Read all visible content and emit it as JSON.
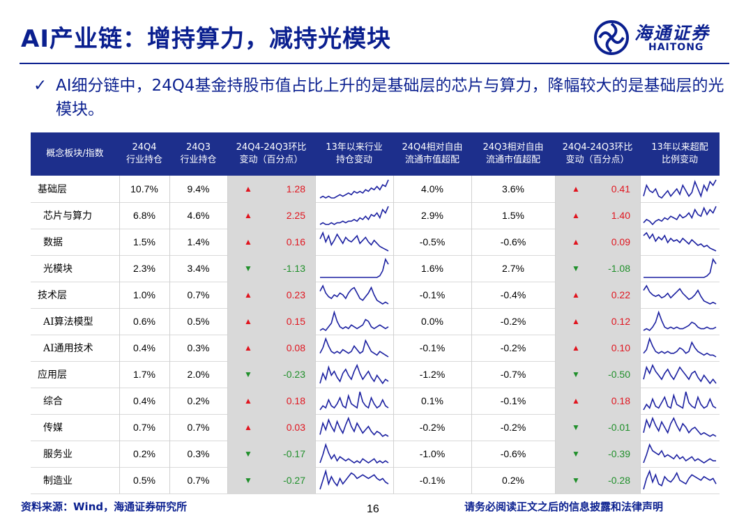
{
  "title": "AI产业链：增持算力，减持光模块",
  "logo": {
    "cn": "海通证券",
    "en": "HAITONG"
  },
  "bullet": {
    "check": "✓",
    "text": "AI细分链中，24Q4基金持股市值占比上升的是基础层的芯片与算力，降幅较大的是基础层的光模块。"
  },
  "table": {
    "headers": [
      [
        "概念板块/指数"
      ],
      [
        "24Q4",
        "行业持仓"
      ],
      [
        "24Q3",
        "行业持仓"
      ],
      [
        "24Q4-24Q3环比",
        "变动（百分点）"
      ],
      [
        "13年以来行业",
        "持仓变动"
      ],
      [
        "24Q4相对自由",
        "流通市值超配"
      ],
      [
        "24Q3相对自由",
        "流通市值超配"
      ],
      [
        "24Q4-24Q3环比",
        "变动（百分点）"
      ],
      [
        "13年以来超配",
        "比例变动"
      ]
    ],
    "rows": [
      {
        "name": "基础层",
        "indent": 0,
        "q4": "10.7%",
        "q3": "9.4%",
        "dir": "up",
        "chg": "1.28",
        "s1": [
          2,
          3,
          2,
          3,
          2,
          2,
          3,
          4,
          3,
          4,
          5,
          4,
          6,
          5,
          6,
          5,
          7,
          6,
          8,
          7,
          9,
          7,
          10,
          9,
          13
        ],
        "rel4": "4.0%",
        "rel3": "3.6%",
        "dir2": "up",
        "chg2": "0.41",
        "s2": [
          6,
          12,
          9,
          8,
          10,
          6,
          5,
          7,
          9,
          6,
          8,
          10,
          7,
          12,
          9,
          6,
          8,
          14,
          10,
          6,
          12,
          9,
          14,
          12,
          15
        ]
      },
      {
        "name": "芯片与算力",
        "indent": 1,
        "q4": "6.8%",
        "q3": "4.6%",
        "dir": "up",
        "chg": "2.25",
        "s1": [
          3,
          4,
          3,
          3,
          4,
          3,
          4,
          4,
          5,
          4,
          5,
          5,
          6,
          5,
          7,
          6,
          8,
          6,
          9,
          8,
          10,
          7,
          12,
          10,
          14
        ],
        "rel4": "2.9%",
        "rel3": "1.5%",
        "dir2": "up",
        "chg2": "1.40",
        "s2": [
          4,
          6,
          5,
          3,
          5,
          6,
          5,
          7,
          6,
          8,
          7,
          6,
          9,
          7,
          8,
          10,
          7,
          12,
          9,
          8,
          13,
          9,
          12,
          10,
          14
        ]
      },
      {
        "name": "数据",
        "indent": 1,
        "q4": "1.5%",
        "q3": "1.4%",
        "dir": "up",
        "chg": "0.16",
        "s1": [
          10,
          14,
          8,
          12,
          6,
          9,
          13,
          10,
          7,
          11,
          9,
          8,
          10,
          12,
          7,
          9,
          11,
          8,
          6,
          9,
          7,
          5,
          4,
          3,
          2
        ],
        "rel4": "-0.5%",
        "rel3": "-0.6%",
        "dir2": "up",
        "chg2": "0.09",
        "s2": [
          12,
          14,
          10,
          13,
          8,
          11,
          9,
          12,
          7,
          10,
          8,
          9,
          7,
          10,
          8,
          6,
          9,
          7,
          5,
          6,
          4,
          5,
          3,
          2,
          1
        ]
      },
      {
        "name": "光模块",
        "indent": 1,
        "q4": "2.3%",
        "q3": "3.4%",
        "dir": "down",
        "chg": "-1.13",
        "s1": [
          1,
          1,
          1,
          1,
          1,
          1,
          1,
          1,
          1,
          1,
          1,
          1,
          1,
          1,
          1,
          1,
          1,
          1,
          1,
          1,
          1,
          2,
          5,
          12,
          9
        ],
        "rel4": "1.6%",
        "rel3": "2.7%",
        "dir2": "down",
        "chg2": "-1.08",
        "s2": [
          1,
          1,
          1,
          1,
          1,
          1,
          1,
          1,
          1,
          1,
          1,
          1,
          1,
          1,
          1,
          1,
          1,
          1,
          1,
          1,
          1,
          2,
          4,
          13,
          10
        ]
      },
      {
        "name": "技术层",
        "indent": 0,
        "q4": "1.0%",
        "q3": "0.7%",
        "dir": "up",
        "chg": "0.23",
        "s1": [
          10,
          13,
          9,
          7,
          6,
          8,
          7,
          9,
          8,
          6,
          9,
          11,
          12,
          9,
          6,
          5,
          7,
          9,
          12,
          8,
          5,
          4,
          3,
          4,
          3
        ],
        "rel4": "-0.1%",
        "rel3": "-0.4%",
        "dir2": "up",
        "chg2": "0.22",
        "s2": [
          11,
          14,
          10,
          8,
          7,
          8,
          6,
          7,
          9,
          6,
          8,
          10,
          12,
          9,
          7,
          5,
          6,
          8,
          11,
          7,
          4,
          3,
          2,
          3,
          2
        ]
      },
      {
        "name": "AI算法模型",
        "indent": 1,
        "q4": "0.6%",
        "q3": "0.5%",
        "dir": "up",
        "chg": "0.15",
        "s1": [
          3,
          4,
          3,
          5,
          7,
          13,
          8,
          5,
          4,
          5,
          4,
          6,
          5,
          4,
          5,
          6,
          9,
          8,
          5,
          4,
          5,
          6,
          5,
          4,
          5
        ],
        "rel4": "0.0%",
        "rel3": "-0.2%",
        "dir2": "up",
        "chg2": "0.12",
        "s2": [
          3,
          4,
          3,
          5,
          8,
          14,
          9,
          5,
          4,
          5,
          4,
          5,
          4,
          4,
          5,
          6,
          8,
          7,
          5,
          4,
          4,
          5,
          4,
          4,
          5
        ]
      },
      {
        "name": "AI通用技术",
        "indent": 1,
        "q4": "0.4%",
        "q3": "0.3%",
        "dir": "up",
        "chg": "0.08",
        "s1": [
          5,
          8,
          13,
          9,
          6,
          5,
          6,
          5,
          7,
          6,
          5,
          6,
          9,
          7,
          5,
          6,
          12,
          9,
          6,
          5,
          4,
          6,
          5,
          4,
          3
        ],
        "rel4": "-0.1%",
        "rel3": "-0.2%",
        "dir2": "up",
        "chg2": "0.10",
        "s2": [
          5,
          7,
          13,
          9,
          6,
          5,
          6,
          5,
          6,
          5,
          5,
          6,
          8,
          7,
          5,
          6,
          11,
          8,
          6,
          5,
          4,
          5,
          4,
          4,
          3
        ]
      },
      {
        "name": "应用层",
        "indent": 0,
        "q4": "1.7%",
        "q3": "2.0%",
        "dir": "down",
        "chg": "-0.23",
        "s1": [
          4,
          9,
          6,
          12,
          8,
          10,
          7,
          5,
          9,
          11,
          8,
          6,
          10,
          13,
          9,
          6,
          8,
          10,
          7,
          5,
          8,
          6,
          4,
          6,
          5
        ],
        "rel4": "-1.2%",
        "rel3": "-0.7%",
        "dir2": "down",
        "chg2": "-0.50",
        "s2": [
          6,
          12,
          9,
          13,
          10,
          8,
          6,
          9,
          11,
          8,
          6,
          9,
          12,
          10,
          8,
          6,
          9,
          10,
          7,
          5,
          8,
          6,
          4,
          6,
          4
        ]
      },
      {
        "name": "综合",
        "indent": 1,
        "q4": "0.4%",
        "q3": "0.2%",
        "dir": "up",
        "chg": "0.18",
        "s1": [
          3,
          5,
          4,
          8,
          5,
          4,
          6,
          9,
          5,
          4,
          10,
          6,
          5,
          4,
          12,
          7,
          5,
          4,
          9,
          6,
          4,
          5,
          8,
          5,
          4
        ],
        "rel4": "0.1%",
        "rel3": "-0.1%",
        "dir2": "up",
        "chg2": "0.18",
        "s2": [
          3,
          6,
          4,
          9,
          5,
          4,
          7,
          10,
          5,
          4,
          11,
          6,
          5,
          4,
          13,
          7,
          5,
          4,
          10,
          6,
          4,
          5,
          9,
          5,
          4
        ]
      },
      {
        "name": "传媒",
        "indent": 1,
        "q4": "0.7%",
        "q3": "0.7%",
        "dir": "up",
        "chg": "0.03",
        "s1": [
          4,
          11,
          7,
          13,
          9,
          6,
          12,
          8,
          5,
          10,
          14,
          9,
          6,
          11,
          8,
          5,
          7,
          9,
          6,
          4,
          6,
          5,
          3,
          4,
          3
        ],
        "rel4": "-0.2%",
        "rel3": "-0.2%",
        "dir2": "down",
        "chg2": "-0.01",
        "s2": [
          5,
          12,
          8,
          13,
          9,
          6,
          11,
          8,
          5,
          10,
          13,
          9,
          6,
          10,
          8,
          5,
          7,
          8,
          6,
          4,
          5,
          4,
          3,
          4,
          3
        ]
      },
      {
        "name": "服务业",
        "indent": 1,
        "q4": "0.2%",
        "q3": "0.3%",
        "dir": "down",
        "chg": "-0.17",
        "s1": [
          5,
          9,
          14,
          10,
          7,
          9,
          6,
          8,
          7,
          6,
          7,
          6,
          5,
          6,
          5,
          7,
          6,
          5,
          6,
          7,
          5,
          6,
          5,
          6,
          5
        ],
        "rel4": "-1.0%",
        "rel3": "-0.6%",
        "dir2": "down",
        "chg2": "-0.39",
        "s2": [
          4,
          8,
          13,
          10,
          9,
          8,
          10,
          7,
          8,
          7,
          6,
          8,
          6,
          7,
          5,
          6,
          7,
          5,
          6,
          5,
          4,
          5,
          6,
          5,
          5
        ]
      },
      {
        "name": "制造业",
        "indent": 1,
        "q4": "0.5%",
        "q3": "0.7%",
        "dir": "down",
        "chg": "-0.27",
        "s1": [
          3,
          8,
          13,
          6,
          10,
          7,
          5,
          9,
          6,
          8,
          10,
          12,
          11,
          9,
          10,
          11,
          10,
          9,
          10,
          11,
          9,
          8,
          9,
          7,
          6
        ],
        "rel4": "-0.1%",
        "rel3": "0.2%",
        "dir2": "down",
        "chg2": "-0.28",
        "s2": [
          3,
          9,
          13,
          7,
          11,
          6,
          5,
          10,
          8,
          7,
          9,
          12,
          8,
          7,
          6,
          9,
          11,
          10,
          9,
          8,
          10,
          9,
          8,
          9,
          6
        ]
      }
    ]
  },
  "footer": {
    "source": "资料来源：Wind，海通证券研究所",
    "page": "16",
    "disclaimer": "请务必阅读正文之后的信息披露和法律声明"
  },
  "colors": {
    "brand": "#0a1f8f",
    "header_bg": "#1d2f8c",
    "up": "#e0141e",
    "down": "#1f8f2a",
    "spark": "#1a1fa0"
  }
}
